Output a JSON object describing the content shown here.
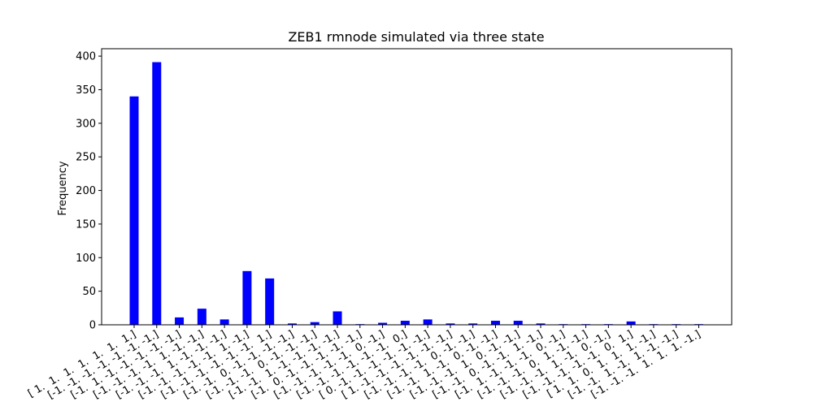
{
  "chart_data": {
    "type": "bar",
    "title": "ZEB1 rmnode simulated via three state",
    "xlabel": "",
    "ylabel": "Frequency",
    "ylim": [
      0,
      411
    ],
    "yticks": [
      0,
      50,
      100,
      150,
      200,
      250,
      300,
      350,
      400
    ],
    "bar_color": "#0000ff",
    "grid": false,
    "categories": [
      "[ 1.  1.  1.  1.  1.  1.  1.]",
      "[-1. -1. -1. -1. -1. -1. -1.]",
      "[-1.  1. -1. -1. -1. -1. -1.]",
      "[-1. -1. -1. -1.  1. -1. -1.]",
      "[-1. -1. -1.  1. -1. -1. -1.]",
      "[-1. -1. -1. -1. -1.  1. -1.]",
      "[-1. -1. -1. -1. -1. -1.  1.]",
      "[-1. -1.  0. -1. -1. -1. -1.]",
      "[-1. -1. -1.  0. -1. -1. -1.]",
      "[-1. -1.  1. -1. -1. -1. -1.]",
      "[-1.  0. -1. -1. -1. -1. -1.]",
      "[-1. -1. -1. -1. -1.  0. -1.]",
      "[-1. -1. -1. -1. -1. -1.  0.]",
      "[ 0. -1. -1. -1. -1. -1. -1.]",
      "[ 1. -1. -1. -1. -1. -1. -1.]",
      "[-1. -1. -1. -1.  0. -1. -1.]",
      "[-1. -1.  1. -1.  0. -1. -1.]",
      "[-1. -1. -1.  1.  0. -1. -1.]",
      "[-1. -1.  0. -1. -1.  1. -1.]",
      "[-1.  1. -1. -1. -1.  0. -1.]",
      "[-1. -1. -1.  0.  1. -1. -1.]",
      "[-1. -1. -1.  1. -1.  0. -1.]",
      "[-1. -1. -1. -1. -1.  0.  1.]",
      "[ 1.  1.  0.  1.  1.  1. -1.]",
      "[-1. -1.  1. -1.  1. -1. -1.]",
      "[-1. -1. -1.  1.  1.  1. -1.]"
    ],
    "values": [
      340,
      391,
      11,
      24,
      8,
      80,
      69,
      2,
      4,
      20,
      1,
      3,
      6,
      8,
      2,
      2,
      6,
      6,
      2,
      1,
      1,
      1,
      5,
      1,
      1,
      1
    ]
  }
}
